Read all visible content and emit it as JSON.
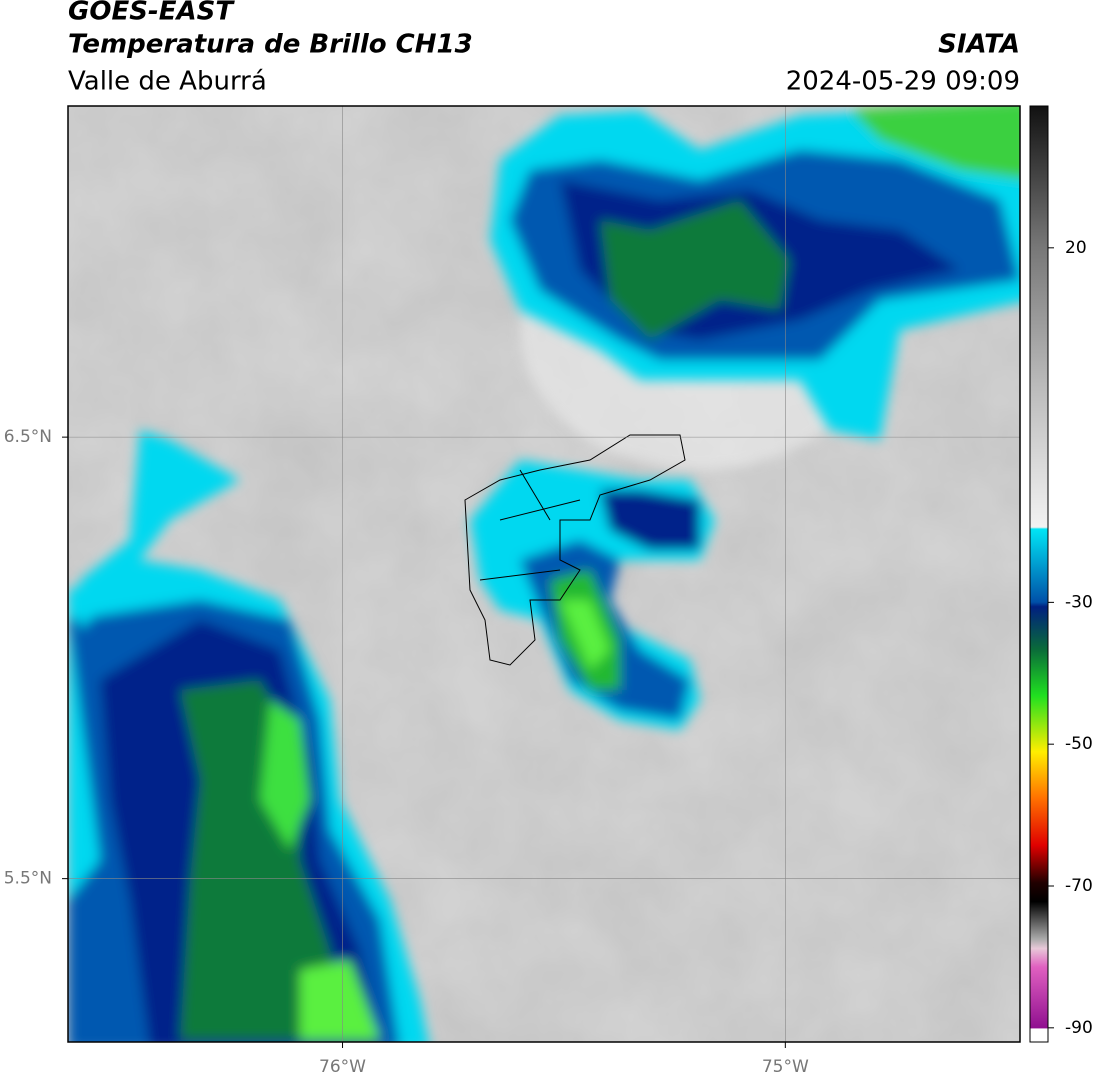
{
  "map": {
    "title": "GOES-EAST",
    "subtitle": "Temperatura de Brillo CH13",
    "region": "Valle de Aburrá",
    "source": "SIATA",
    "datetime": "2024-05-29 09:09",
    "xlim": [
      -76.62,
      -74.47
    ],
    "ylim": [
      5.13,
      7.25
    ],
    "xticks": [
      {
        "value": -76,
        "label": "76°W"
      },
      {
        "value": -75,
        "label": "75°W"
      }
    ],
    "yticks": [
      {
        "value": 6.5,
        "label": "6.5°N"
      },
      {
        "value": 5.5,
        "label": "5.5°N"
      }
    ],
    "colorbar": {
      "clim": [
        -92,
        40
      ],
      "ticks": [
        20,
        -30,
        -50,
        -70,
        -90
      ]
    }
  }
}
